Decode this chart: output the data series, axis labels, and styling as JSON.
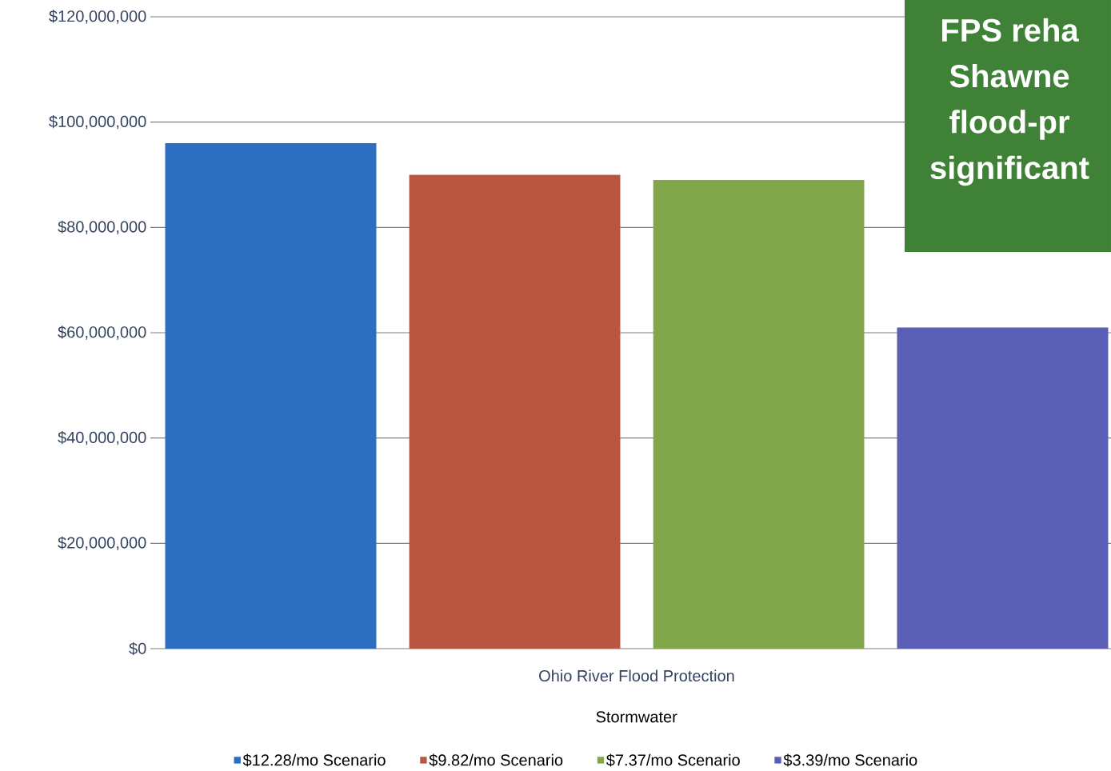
{
  "chart_data": {
    "type": "bar",
    "categories": [
      "Ohio River Flood Protection"
    ],
    "xlabel": "Stormwater",
    "series": [
      {
        "name": "$12.28/mo Scenario",
        "color": "#2e6ec0",
        "values": [
          96000000
        ]
      },
      {
        "name": "$9.82/mo Scenario",
        "color": "#b85642",
        "values": [
          90000000
        ]
      },
      {
        "name": "$7.37/mo Scenario",
        "color": "#82a64a",
        "values": [
          89000000
        ]
      },
      {
        "name": "$3.39/mo Scenario",
        "color": "#5a5fb5",
        "values": [
          61000000
        ]
      }
    ],
    "ylim": [
      0,
      120000000
    ],
    "yticks": [
      {
        "value": 0,
        "label": "$0"
      },
      {
        "value": 20000000,
        "label": "$20,000,000"
      },
      {
        "value": 40000000,
        "label": "$40,000,000"
      },
      {
        "value": 60000000,
        "label": "$60,000,000"
      },
      {
        "value": 80000000,
        "label": "$80,000,000"
      },
      {
        "value": 100000000,
        "label": "$100,000,000"
      },
      {
        "value": 120000000,
        "label": "$120,000,000"
      }
    ],
    "grid": "y",
    "legend": "bottom",
    "annotations": [
      "FPS reha",
      "Shawne",
      "flood-pr",
      "significant"
    ]
  }
}
